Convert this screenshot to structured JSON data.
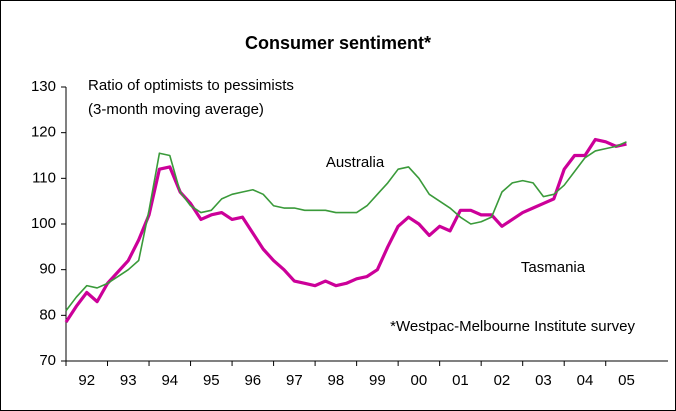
{
  "chart_data": {
    "type": "line",
    "title": "Consumer sentiment*",
    "subtitle": [
      "Ratio of optimists to pessimists",
      "(3-month moving average)"
    ],
    "annotations": [
      "*Westpac-Melbourne Institute survey"
    ],
    "x": [
      1992,
      1992.25,
      1992.5,
      1992.75,
      1993,
      1993.25,
      1993.5,
      1993.75,
      1994,
      1994.25,
      1994.5,
      1994.75,
      1995,
      1995.25,
      1995.5,
      1995.75,
      1996,
      1996.25,
      1996.5,
      1996.75,
      1997,
      1997.25,
      1997.5,
      1997.75,
      1998,
      1998.25,
      1998.5,
      1998.75,
      1999,
      1999.25,
      1999.5,
      1999.75,
      2000,
      2000.25,
      2000.5,
      2000.75,
      2001,
      2001.25,
      2001.5,
      2001.75,
      2002,
      2002.25,
      2002.5,
      2002.75,
      2003,
      2003.25,
      2003.5,
      2003.75,
      2004,
      2004.25,
      2004.5,
      2004.75,
      2005,
      2005.25,
      2005.5
    ],
    "series": [
      {
        "name": "Australia",
        "color": "#3a9a3a",
        "values": [
          81,
          84,
          86.5,
          86,
          87,
          88.5,
          90,
          92,
          103,
          115.5,
          115,
          107,
          104,
          102.5,
          103,
          105.5,
          106.5,
          107,
          107.5,
          106.5,
          104,
          103.5,
          103.5,
          103,
          103,
          103,
          102.5,
          102.5,
          102.5,
          104,
          106.5,
          109,
          112,
          112.5,
          110,
          106.5,
          105,
          103.5,
          101.5,
          100,
          100.5,
          101.5,
          107,
          109,
          109.5,
          109,
          106,
          106.5,
          108.5,
          111.5,
          114.5,
          116,
          116.5,
          117,
          118
        ]
      },
      {
        "name": "Tasmania",
        "color": "#cc0099",
        "values": [
          78.5,
          82,
          85,
          83,
          87,
          89.5,
          92,
          96.5,
          102,
          112,
          112.5,
          107,
          104.5,
          101,
          102,
          102.5,
          101,
          101.5,
          98,
          94.5,
          92,
          90,
          87.5,
          87,
          86.5,
          87.5,
          86.5,
          87,
          88,
          88.5,
          90,
          95,
          99.5,
          101.5,
          100,
          97.5,
          99.5,
          98.5,
          103,
          103,
          102,
          102,
          99.5,
          101,
          102.5,
          103.5,
          104.5,
          105.5,
          112,
          115,
          115,
          118.5,
          118,
          117,
          117.5
        ]
      }
    ],
    "xlim": [
      1992,
      2006.5
    ],
    "xticks": [
      {
        "value": 1992,
        "label": "92"
      },
      {
        "value": 1993,
        "label": "93"
      },
      {
        "value": 1994,
        "label": "94"
      },
      {
        "value": 1995,
        "label": "95"
      },
      {
        "value": 1996,
        "label": "96"
      },
      {
        "value": 1997,
        "label": "97"
      },
      {
        "value": 1998,
        "label": "98"
      },
      {
        "value": 1999,
        "label": "99"
      },
      {
        "value": 2000,
        "label": "00"
      },
      {
        "value": 2001,
        "label": "01"
      },
      {
        "value": 2002,
        "label": "02"
      },
      {
        "value": 2003,
        "label": "03"
      },
      {
        "value": 2004,
        "label": "04"
      },
      {
        "value": 2005,
        "label": "05"
      }
    ],
    "ylim": [
      70,
      130
    ],
    "yticks": [
      70,
      80,
      90,
      100,
      110,
      120,
      130
    ],
    "grid": false
  }
}
